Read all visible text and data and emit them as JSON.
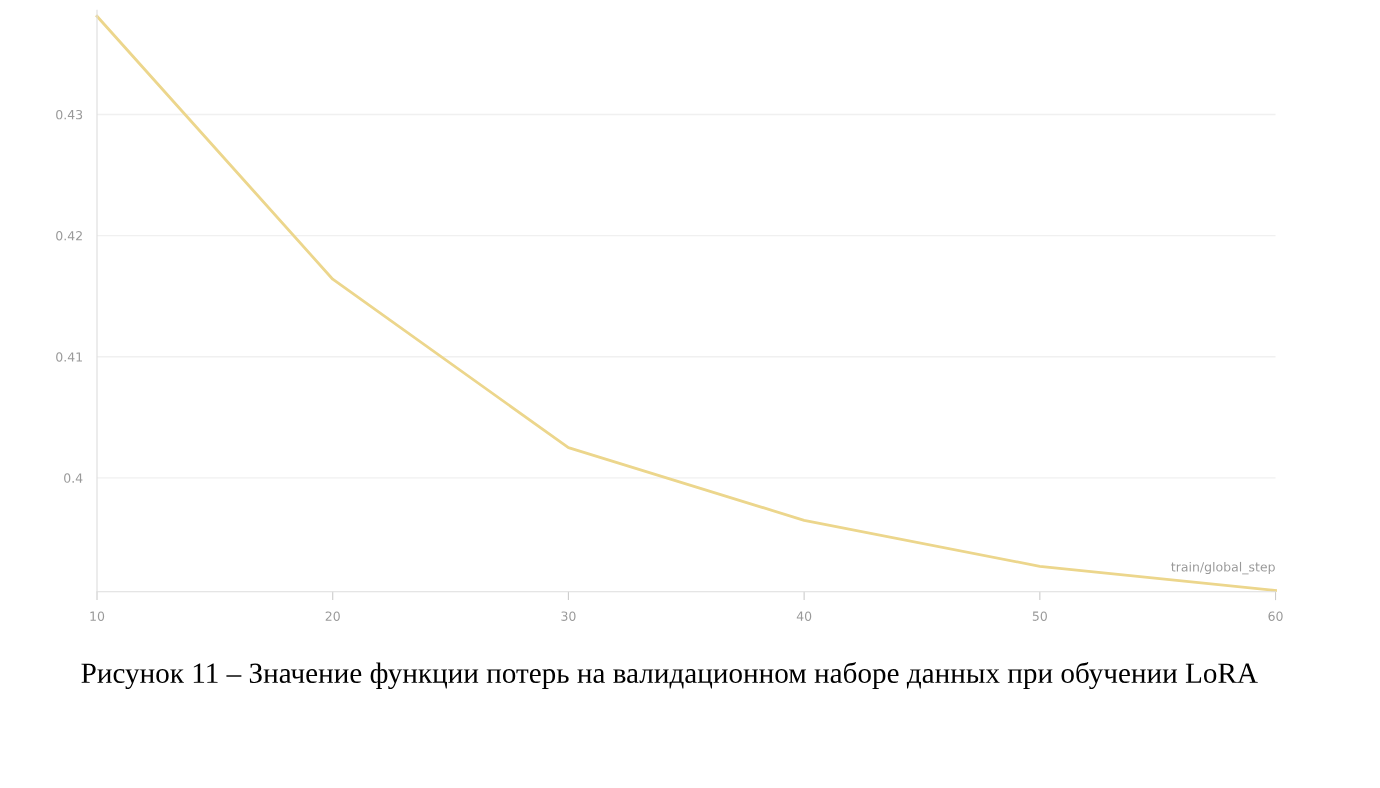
{
  "chart_data": {
    "type": "line",
    "xlabel": "train/global_step",
    "x": [
      10,
      20,
      30,
      40,
      50,
      60
    ],
    "series": [
      {
        "color": "#ecd68c",
        "values": [
          0.4381,
          0.4164,
          0.4025,
          0.3965,
          0.3927,
          0.3907
        ]
      }
    ],
    "xlim": [
      10,
      60
    ],
    "xticks": [
      10,
      20,
      30,
      40,
      50,
      60
    ],
    "ylim": [
      0.3906,
      0.4386
    ],
    "yticks": [
      0.4,
      0.41,
      0.42,
      0.43
    ],
    "grid": "y",
    "marker": "none",
    "line_style": "solid",
    "annotations": [
      "Рисунок 11 – Значение функции потерь на валидационном наборе данных при обучении LoRA"
    ]
  }
}
